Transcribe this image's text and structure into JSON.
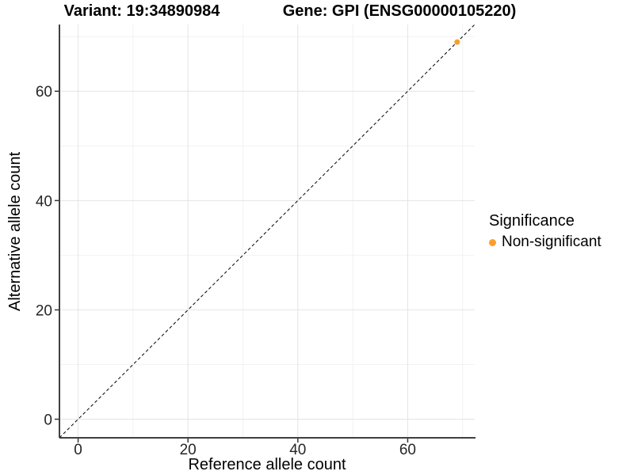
{
  "chart_data": {
    "type": "scatter",
    "title_left": "Variant: 19:34890984",
    "title_right": "Gene: GPI (ENSG00000105220)",
    "xlabel": "Reference allele count",
    "ylabel": "Alternative allele count",
    "xlim": [
      -3.4,
      72.2
    ],
    "ylim": [
      -3.4,
      72.2
    ],
    "x_major_ticks": [
      0,
      20,
      40,
      60
    ],
    "y_major_ticks": [
      0,
      20,
      40,
      60
    ],
    "x_minor_ticks": [
      10,
      30,
      50,
      70
    ],
    "y_minor_ticks": [
      10,
      30,
      50,
      70
    ],
    "grid": {
      "major_color": "#E4E4E4",
      "minor_color": "#F2F2F2",
      "grid_on": true
    },
    "axis_color": "#404040",
    "identity_line": {
      "slope": 1,
      "intercept": 0,
      "style": "dashed",
      "color": "#000000"
    },
    "series": [
      {
        "name": "Non-significant",
        "color": "#F9A02C",
        "points": [
          {
            "x": 69,
            "y": 69
          }
        ]
      }
    ],
    "legend": {
      "title": "Significance",
      "position": "right",
      "entries": [
        {
          "label": "Non-significant",
          "color": "#F9A02C"
        }
      ]
    }
  }
}
